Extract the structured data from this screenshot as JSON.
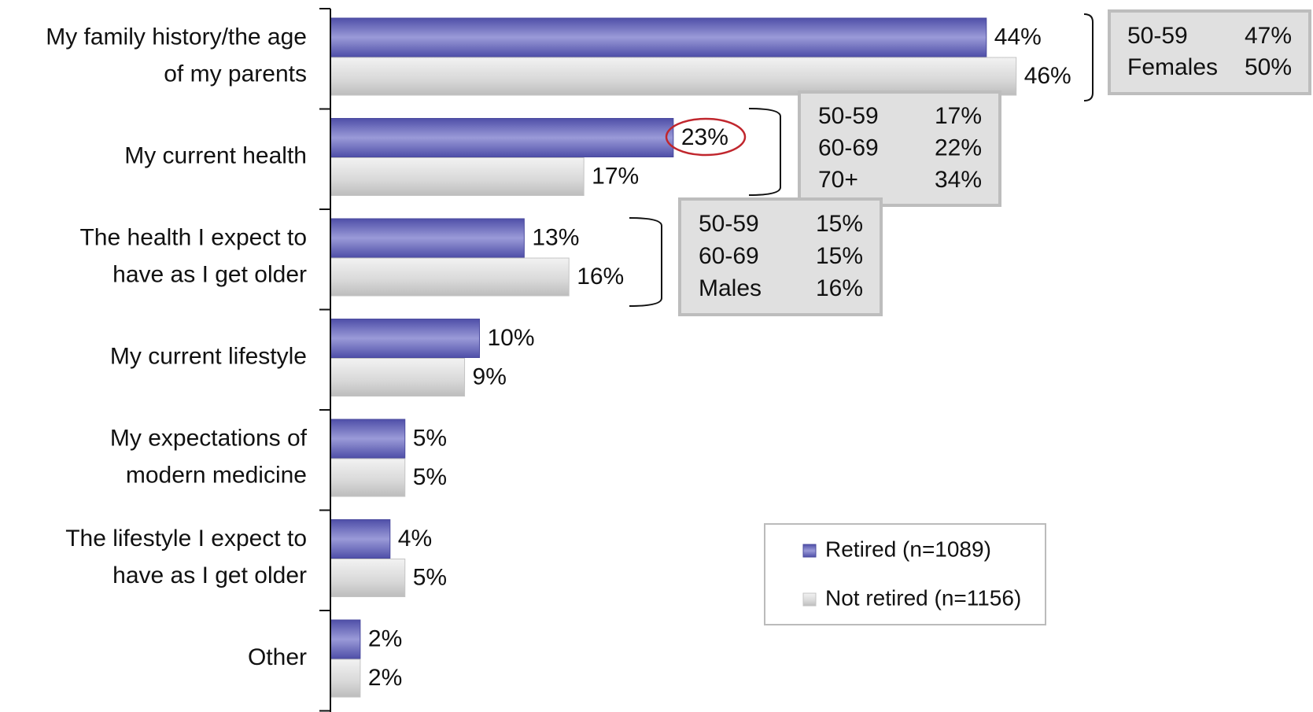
{
  "chart_data": {
    "type": "bar",
    "orientation": "horizontal",
    "categories": [
      [
        "My family history/the age",
        "of my parents"
      ],
      [
        "My current health"
      ],
      [
        "The health I expect to",
        "have as I get older"
      ],
      [
        "My current lifestyle"
      ],
      [
        "My expectations of",
        "modern medicine"
      ],
      [
        "The lifestyle I expect to",
        "have as I get older"
      ],
      [
        "Other"
      ]
    ],
    "series": [
      {
        "name": "Retired (n=1089)",
        "color": "#6b6bbf",
        "values": [
          44,
          23,
          13,
          10,
          5,
          4,
          2
        ],
        "value_labels": [
          "44%",
          "23%",
          "13%",
          "10%",
          "5%",
          "4%",
          "2%"
        ]
      },
      {
        "name": "Not retired (n=1156)",
        "color": "#d6d6d6",
        "values": [
          46,
          17,
          16,
          9,
          5,
          5,
          2
        ],
        "value_labels": [
          "46%",
          "17%",
          "16%",
          "9%",
          "5%",
          "5%",
          "2%"
        ]
      }
    ],
    "callouts": [
      {
        "rows": [
          {
            "label": "50-59",
            "value": "47%"
          },
          {
            "label": "Females",
            "value": "50%"
          }
        ]
      },
      {
        "rows": [
          {
            "label": "50-59",
            "value": "17%"
          },
          {
            "label": "60-69",
            "value": "22%"
          },
          {
            "label": "70+",
            "value": "34%"
          }
        ]
      },
      {
        "rows": [
          {
            "label": "50-59",
            "value": "15%"
          },
          {
            "label": "60-69",
            "value": "15%"
          },
          {
            "label": "Males",
            "value": "16%"
          }
        ]
      }
    ]
  }
}
